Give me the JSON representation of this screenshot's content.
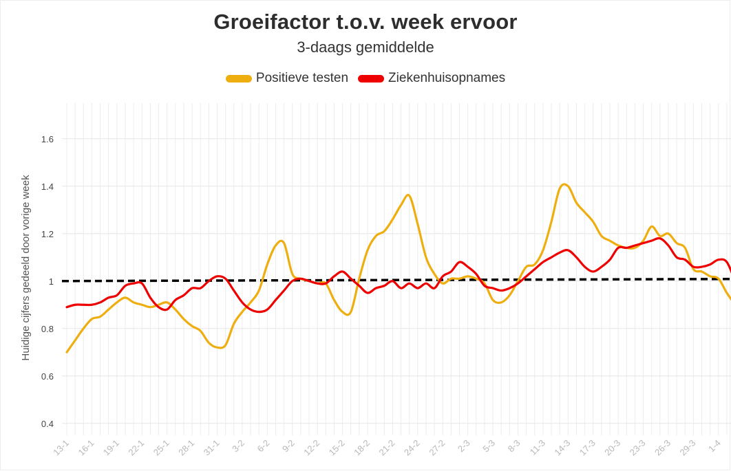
{
  "chart_data": {
    "type": "line",
    "title": "Groeifactor t.o.v. week ervoor",
    "subtitle": "3-daags gemiddelde",
    "ylabel": "Huidige cijfers gedeeld door vorige week",
    "xlabel": "",
    "ylim": [
      0.35,
      1.75
    ],
    "yticks": [
      0.4,
      0.6,
      0.8,
      1,
      1.2,
      1.4,
      1.6
    ],
    "ytick_labels": [
      "0.4",
      "0.6",
      "0.8",
      "1",
      "1.2",
      "1.4",
      "1.6"
    ],
    "xlim": [
      0,
      79.5
    ],
    "x_tick_labels": [
      "13-1",
      "16-1",
      "19-1",
      "22-1",
      "25-1",
      "28-1",
      "31-1",
      "3-2",
      "6-2",
      "9-2",
      "12-2",
      "15-2",
      "18-2",
      "21-2",
      "24-2",
      "27-2",
      "2-3",
      "5-3",
      "8-3",
      "11-3",
      "14-3",
      "17-3",
      "20-3",
      "23-3",
      "26-3",
      "29-3",
      "1-4"
    ],
    "x_tick_step_days": 3,
    "grid": true,
    "legend_position": "top-center",
    "reference_line": {
      "y": 1.0,
      "style": "dashed",
      "color": "#000000"
    },
    "series": [
      {
        "name": "Positieve testen",
        "color": "#EFAE0F",
        "values": [
          0.7,
          0.75,
          0.8,
          0.84,
          0.85,
          0.88,
          0.91,
          0.93,
          0.91,
          0.9,
          0.89,
          0.9,
          0.91,
          0.88,
          0.84,
          0.81,
          0.79,
          0.74,
          0.72,
          0.73,
          0.82,
          0.87,
          0.91,
          0.96,
          1.07,
          1.15,
          1.16,
          1.03,
          1.01,
          1.0,
          0.99,
          0.99,
          0.92,
          0.87,
          0.87,
          1.01,
          1.13,
          1.19,
          1.21,
          1.26,
          1.32,
          1.36,
          1.24,
          1.1,
          1.03,
          0.99,
          1.01,
          1.01,
          1.02,
          1.01,
          0.99,
          0.92,
          0.91,
          0.94,
          1.0,
          1.06,
          1.07,
          1.13,
          1.25,
          1.39,
          1.4,
          1.33,
          1.29,
          1.25,
          1.19,
          1.17,
          1.15,
          1.14,
          1.14,
          1.17,
          1.23,
          1.19,
          1.2,
          1.16,
          1.14,
          1.05,
          1.04,
          1.02,
          1.01,
          0.95,
          0.9
        ]
      },
      {
        "name": "Ziekenhuisopnames",
        "color": "#EE0000",
        "values": [
          0.89,
          0.9,
          0.9,
          0.9,
          0.91,
          0.93,
          0.94,
          0.98,
          0.99,
          0.99,
          0.93,
          0.89,
          0.88,
          0.92,
          0.94,
          0.97,
          0.97,
          1.0,
          1.02,
          1.01,
          0.96,
          0.91,
          0.88,
          0.87,
          0.88,
          0.92,
          0.96,
          1.0,
          1.01,
          1.0,
          0.99,
          0.99,
          1.02,
          1.04,
          1.01,
          0.98,
          0.95,
          0.97,
          0.98,
          1.0,
          0.97,
          0.99,
          0.97,
          0.99,
          0.97,
          1.02,
          1.04,
          1.08,
          1.06,
          1.03,
          0.98,
          0.97,
          0.96,
          0.97,
          0.99,
          1.02,
          1.05,
          1.08,
          1.1,
          1.12,
          1.13,
          1.1,
          1.06,
          1.04,
          1.06,
          1.09,
          1.14,
          1.14,
          1.15,
          1.16,
          1.17,
          1.18,
          1.15,
          1.1,
          1.09,
          1.06,
          1.06,
          1.07,
          1.09,
          1.08,
          1.0,
          0.92
        ]
      }
    ]
  }
}
